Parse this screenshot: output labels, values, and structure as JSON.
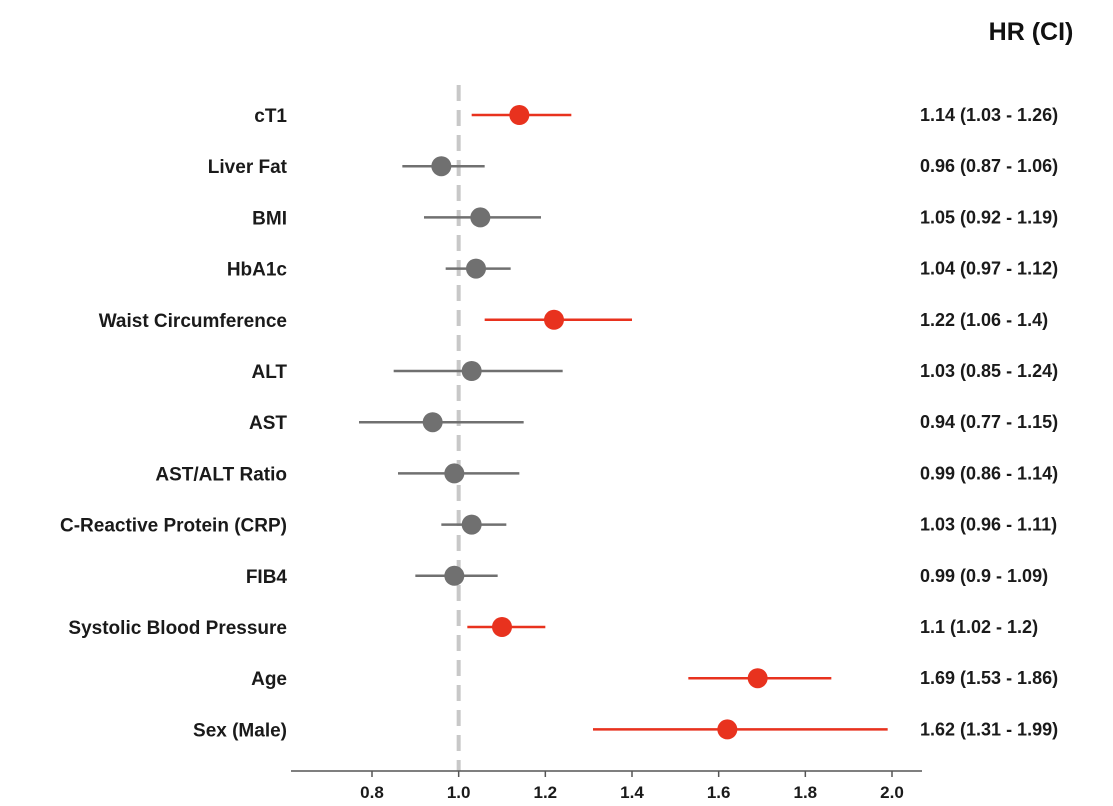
{
  "chart_data": {
    "type": "forest",
    "header": "HR (CI)",
    "reference_line": 1.0,
    "xlim": [
      0.6,
      2.05
    ],
    "xticks": [
      "0.8",
      "1.0",
      "1.2",
      "1.4",
      "1.6",
      "1.8",
      "2.0"
    ],
    "colors": {
      "significant": "#e8321e",
      "non_significant": "#707070",
      "reference": "#c8c8c8",
      "axis": "#555555"
    },
    "rows": [
      {
        "label": "cT1",
        "hr": 1.14,
        "lower": 1.03,
        "upper": 1.26,
        "text": "1.14 (1.03 - 1.26)",
        "significant": true
      },
      {
        "label": "Liver Fat",
        "hr": 0.96,
        "lower": 0.87,
        "upper": 1.06,
        "text": "0.96 (0.87 - 1.06)",
        "significant": false
      },
      {
        "label": "BMI",
        "hr": 1.05,
        "lower": 0.92,
        "upper": 1.19,
        "text": "1.05 (0.92 - 1.19)",
        "significant": false
      },
      {
        "label": "HbA1c",
        "hr": 1.04,
        "lower": 0.97,
        "upper": 1.12,
        "text": "1.04 (0.97 - 1.12)",
        "significant": false
      },
      {
        "label": "Waist Circumference",
        "hr": 1.22,
        "lower": 1.06,
        "upper": 1.4,
        "text": "1.22 (1.06 - 1.4)",
        "significant": true
      },
      {
        "label": "ALT",
        "hr": 1.03,
        "lower": 0.85,
        "upper": 1.24,
        "text": "1.03 (0.85 - 1.24)",
        "significant": false
      },
      {
        "label": "AST",
        "hr": 0.94,
        "lower": 0.77,
        "upper": 1.15,
        "text": "0.94 (0.77 - 1.15)",
        "significant": false
      },
      {
        "label": "AST/ALT Ratio",
        "hr": 0.99,
        "lower": 0.86,
        "upper": 1.14,
        "text": "0.99 (0.86 - 1.14)",
        "significant": false
      },
      {
        "label": "C-Reactive Protein (CRP)",
        "hr": 1.03,
        "lower": 0.96,
        "upper": 1.11,
        "text": "1.03 (0.96 - 1.11)",
        "significant": false
      },
      {
        "label": "FIB4",
        "hr": 0.99,
        "lower": 0.9,
        "upper": 1.09,
        "text": "0.99 (0.9 - 1.09)",
        "significant": false
      },
      {
        "label": "Systolic Blood Pressure",
        "hr": 1.1,
        "lower": 1.02,
        "upper": 1.2,
        "text": "1.1 (1.02 - 1.2)",
        "significant": true
      },
      {
        "label": "Age",
        "hr": 1.69,
        "lower": 1.53,
        "upper": 1.86,
        "text": "1.69 (1.53 - 1.86)",
        "significant": true
      },
      {
        "label": "Sex (Male)",
        "hr": 1.62,
        "lower": 1.31,
        "upper": 1.99,
        "text": "1.62 (1.31 - 1.99)",
        "significant": true
      }
    ]
  }
}
